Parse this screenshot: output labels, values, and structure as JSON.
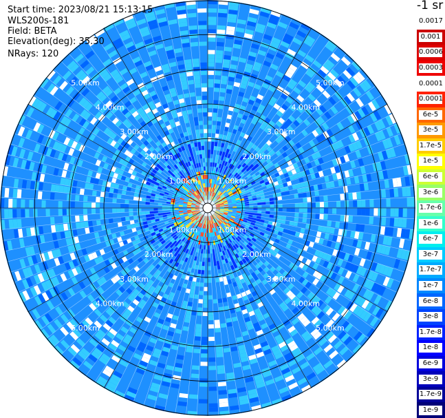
{
  "header": {
    "start_time": "Start time: 2023/08/21 15:13:15",
    "instrument": "WLS200s-181",
    "field": "Field: BETA",
    "elevation": "Elevation(deg): 35.30",
    "nrays": "NRays: 120"
  },
  "chart_data": {
    "type": "heatmap",
    "projection": "polar (PPI scan)",
    "field": "BETA",
    "n_rays": 120,
    "elevation_deg": 35.3,
    "colorbar_title": "-1 sr",
    "colorbar_levels": [
      "0.0017",
      "0.001",
      "0.0006",
      "0.0003",
      "0.00017",
      "0.0001",
      "6e-5",
      "3e-5",
      "1.7e-5",
      "1e-5",
      "6e-6",
      "3e-6",
      "1.7e-6",
      "1e-6",
      "6e-7",
      "3e-7",
      "1.7e-7",
      "1e-7",
      "6e-8",
      "3e-8",
      "1.7e-8",
      "1e-8",
      "6e-9",
      "3e-9",
      "1.7e-9",
      "1e-9"
    ],
    "colorbar_colors": [
      "#ffffff",
      "#cc0000",
      "#dd0000",
      "#ee0000",
      "#ffffff",
      "#ff2200",
      "#ff6600",
      "#ff9900",
      "#ffcc00",
      "#ffff00",
      "#ccff33",
      "#99ff66",
      "#66ffaa",
      "#33ffcc",
      "#00eeee",
      "#00ccff",
      "#00aaff",
      "#0088ff",
      "#0066ff",
      "#0044ff",
      "#0022ff",
      "#0000ff",
      "#0000dd",
      "#0000bb",
      "#000099",
      "#000077"
    ],
    "range_rings_km": [
      1.0,
      2.0,
      3.0,
      4.0,
      5.0
    ],
    "range_ring_labels": [
      "1.00km",
      "2.00km",
      "3.00km",
      "4.00km",
      "5.00km"
    ],
    "max_range_km": 6.0,
    "grid": true
  },
  "colors": {
    "background_blue": "#1e90ff",
    "light_cyan": "#33ccff",
    "deep_blue": "#0033ff",
    "near_field_red": "#ff3300",
    "near_field_yellow": "#ffdd00"
  }
}
